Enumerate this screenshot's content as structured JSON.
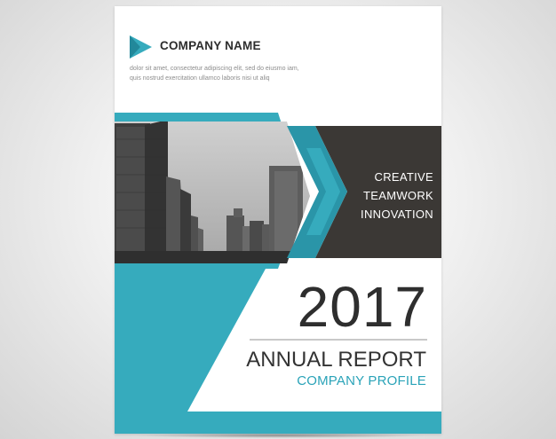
{
  "company": {
    "name": "COMPANY NAME",
    "description": "dolor sit amet, consectetur adipiscing elit, sed do eiusmo iam, quis nostrud exercitation ullamco laboris nisi ut aliq"
  },
  "tagline": [
    "CREATIVE",
    "TEAMWORK",
    "INNOVATION"
  ],
  "year": "2017",
  "report_title": "ANNUAL REPORT",
  "report_subtitle": "COMPANY PROFILE",
  "colors": {
    "accent": "#36abbd",
    "accent_dark": "#22889a",
    "dark_panel": "#3b3835",
    "text_dark": "#2e2e2e",
    "background": "#ffffff"
  },
  "icons": {
    "logo": "play-triangle-icon"
  }
}
